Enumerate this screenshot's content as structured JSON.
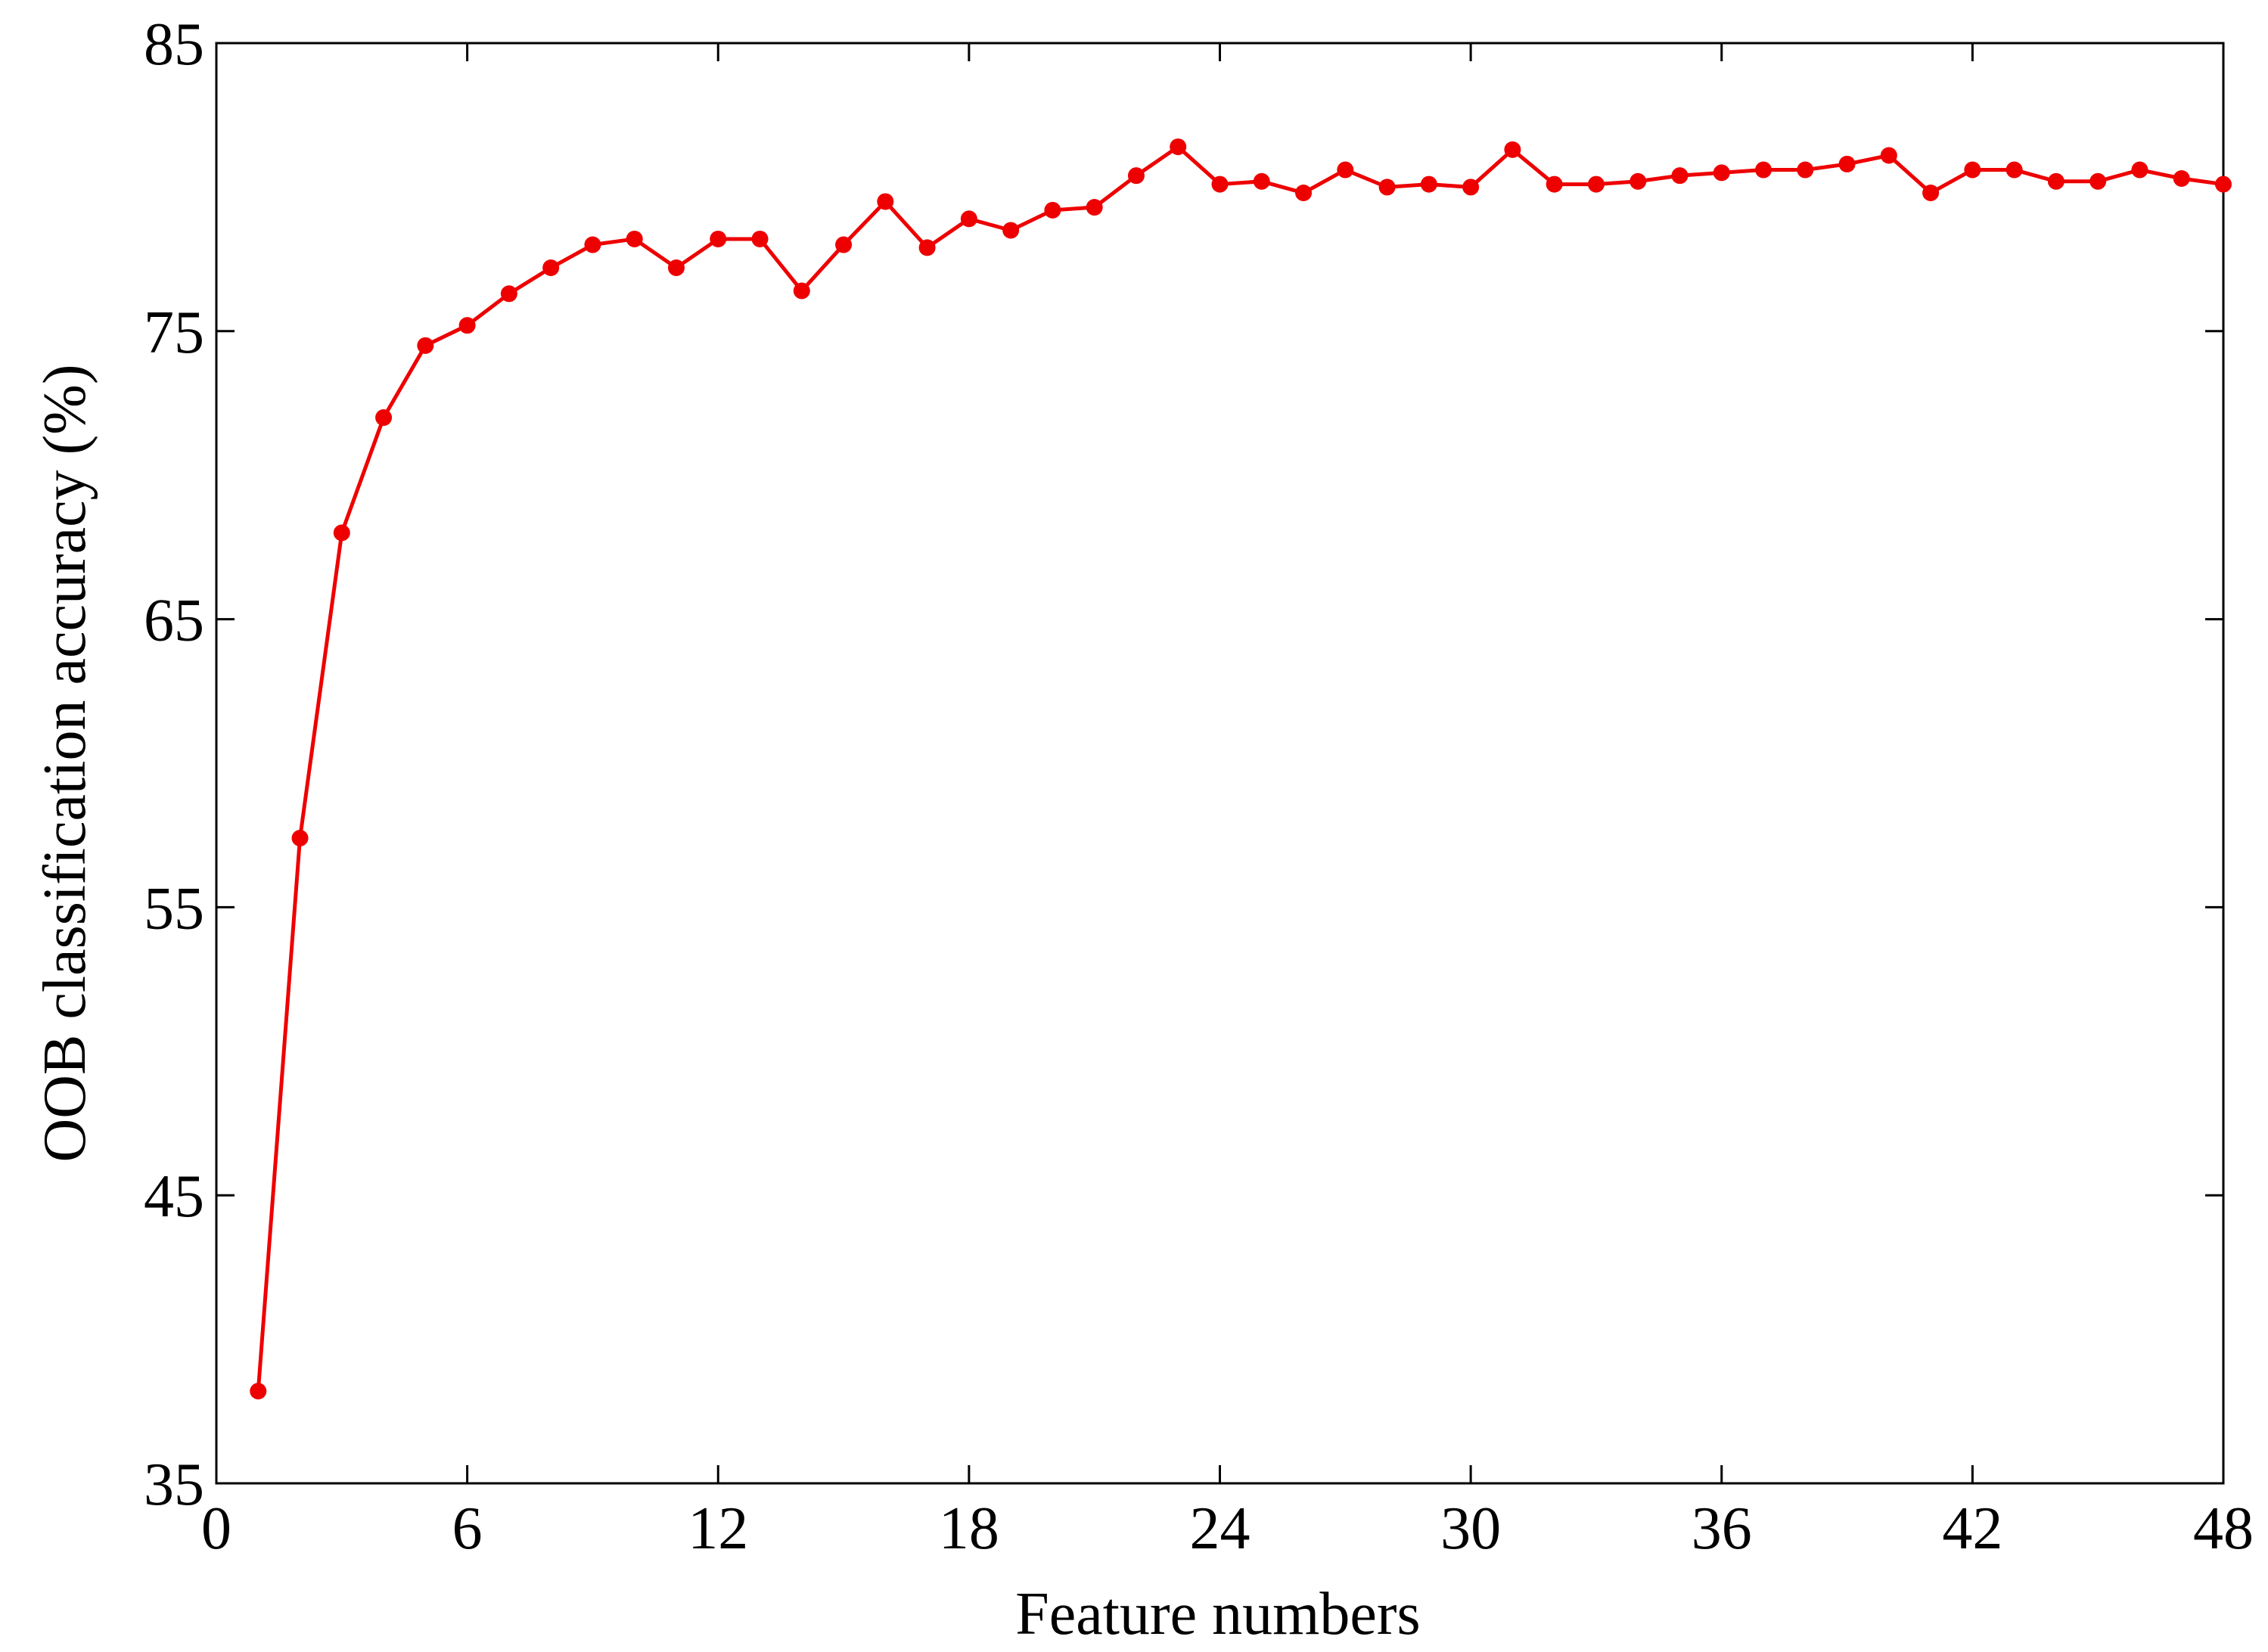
{
  "chart_data": {
    "type": "line",
    "x_label": "Feature numbers",
    "y_label": "OOB classification accuracy (%)",
    "x": [
      1,
      2,
      3,
      4,
      5,
      6,
      7,
      8,
      9,
      10,
      11,
      12,
      13,
      14,
      15,
      16,
      17,
      18,
      19,
      20,
      21,
      22,
      23,
      24,
      25,
      26,
      27,
      28,
      29,
      30,
      31,
      32,
      33,
      34,
      35,
      36,
      37,
      38,
      39,
      40,
      41,
      42,
      43,
      44,
      45,
      46,
      47,
      48
    ],
    "series": [
      {
        "color": "#ee0000",
        "values": [
          38.2,
          57.4,
          68.0,
          72.0,
          74.5,
          75.2,
          76.3,
          77.2,
          78.0,
          78.2,
          77.2,
          78.2,
          78.2,
          76.4,
          78.0,
          79.5,
          77.9,
          78.9,
          78.5,
          79.2,
          79.3,
          80.4,
          81.4,
          80.1,
          80.2,
          79.8,
          80.6,
          80.0,
          80.1,
          80.0,
          81.3,
          80.1,
          80.1,
          80.2,
          80.4,
          80.5,
          80.6,
          80.6,
          80.8,
          81.1,
          79.8,
          80.6,
          80.6,
          80.2,
          80.2,
          80.6,
          80.3,
          80.1
        ]
      }
    ],
    "xlim": [
      0,
      48
    ],
    "xticks": [
      0,
      6,
      12,
      18,
      24,
      30,
      36,
      42,
      48
    ],
    "ylim": [
      35,
      85
    ],
    "yticks": [
      35,
      45,
      55,
      65,
      75,
      85
    ],
    "grid": false
  }
}
